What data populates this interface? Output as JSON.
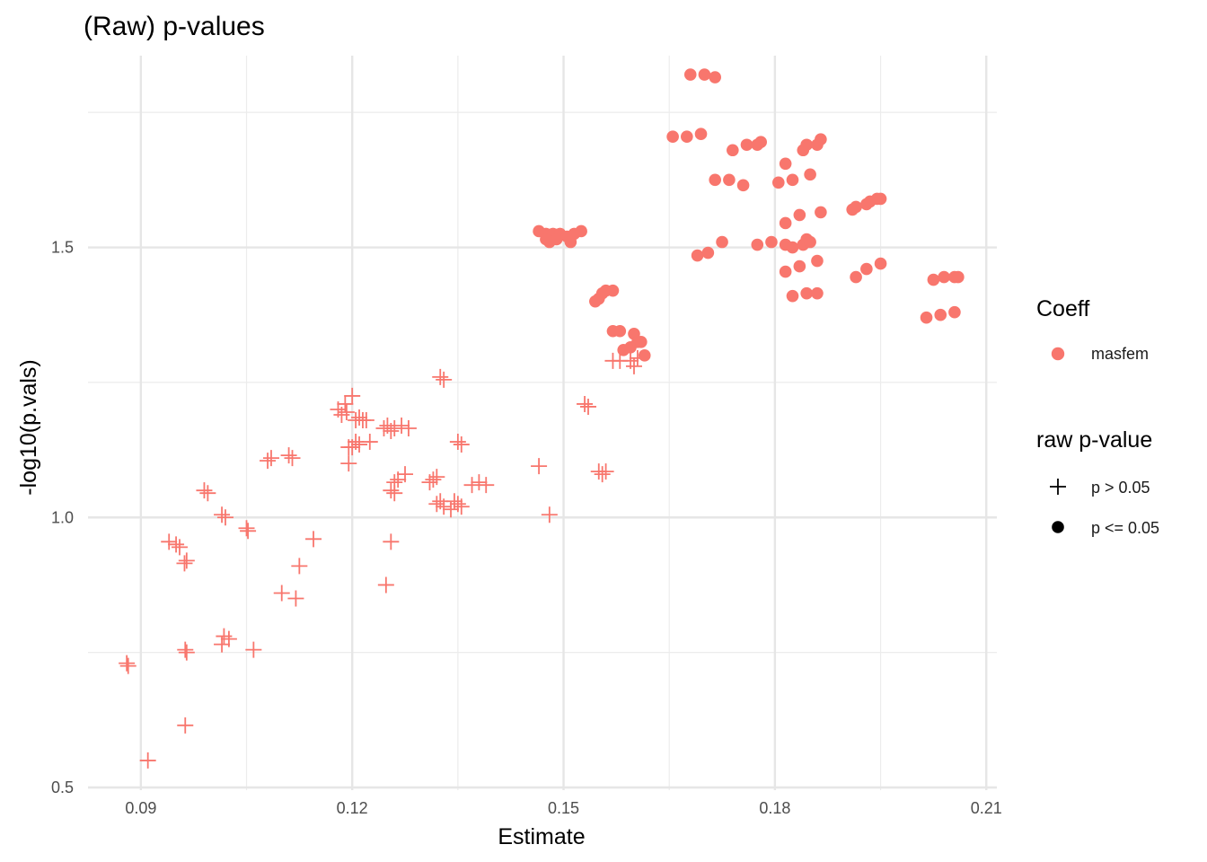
{
  "chart_data": {
    "type": "scatter",
    "title": "(Raw) p-values",
    "xlabel": "Estimate",
    "ylabel": "-log10(p.vals)",
    "xlim": [
      0.0825,
      0.2115
    ],
    "ylim": [
      0.495,
      1.855
    ],
    "x_ticks": [
      0.09,
      0.12,
      0.15,
      0.18,
      0.21
    ],
    "x_tick_labels": [
      "0.09",
      "0.12",
      "0.15",
      "0.18",
      "0.21"
    ],
    "y_ticks": [
      0.5,
      1.0,
      1.5
    ],
    "y_tick_labels": [
      "0.5",
      "1.0",
      "1.5"
    ],
    "grid": true,
    "color": "#F8766D",
    "legends": {
      "color": {
        "title": "Coeff",
        "entries": [
          {
            "label": "masfem",
            "color": "#F8766D"
          }
        ]
      },
      "shape": {
        "title": "raw p-value",
        "entries": [
          {
            "label": "p >  0.05",
            "shape": "plus"
          },
          {
            "label": "p <= 0.05",
            "shape": "circle"
          }
        ]
      },
      "placement": "right"
    },
    "series": [
      {
        "shape": "plus",
        "group": "p > 0.05",
        "points": [
          [
            0.088,
            0.73
          ],
          [
            0.0882,
            0.725
          ],
          [
            0.091,
            0.55
          ],
          [
            0.094,
            0.955
          ],
          [
            0.095,
            0.95
          ],
          [
            0.0955,
            0.945
          ],
          [
            0.0965,
            0.92
          ],
          [
            0.0962,
            0.915
          ],
          [
            0.0963,
            0.755
          ],
          [
            0.0965,
            0.75
          ],
          [
            0.0963,
            0.615
          ],
          [
            0.099,
            1.05
          ],
          [
            0.0995,
            1.045
          ],
          [
            0.1015,
            1.005
          ],
          [
            0.102,
            1.0
          ],
          [
            0.1018,
            0.78
          ],
          [
            0.1015,
            0.765
          ],
          [
            0.1025,
            0.775
          ],
          [
            0.105,
            0.98
          ],
          [
            0.1052,
            0.975
          ],
          [
            0.106,
            0.755
          ],
          [
            0.108,
            1.105
          ],
          [
            0.1085,
            1.11
          ],
          [
            0.111,
            1.115
          ],
          [
            0.1115,
            1.11
          ],
          [
            0.11,
            0.86
          ],
          [
            0.112,
            0.85
          ],
          [
            0.1125,
            0.91
          ],
          [
            0.1145,
            0.96
          ],
          [
            0.118,
            1.2
          ],
          [
            0.1185,
            1.19
          ],
          [
            0.119,
            1.21
          ],
          [
            0.1192,
            1.195
          ],
          [
            0.1195,
            1.13
          ],
          [
            0.12,
            1.225
          ],
          [
            0.1205,
            1.18
          ],
          [
            0.121,
            1.185
          ],
          [
            0.1215,
            1.18
          ],
          [
            0.1195,
            1.1
          ],
          [
            0.12,
            1.13
          ],
          [
            0.1205,
            1.14
          ],
          [
            0.121,
            1.135
          ],
          [
            0.122,
            1.18
          ],
          [
            0.1225,
            1.14
          ],
          [
            0.1245,
            1.165
          ],
          [
            0.125,
            1.17
          ],
          [
            0.1255,
            1.16
          ],
          [
            0.126,
            1.165
          ],
          [
            0.127,
            1.17
          ],
          [
            0.128,
            1.165
          ],
          [
            0.1255,
            1.05
          ],
          [
            0.126,
            1.045
          ],
          [
            0.126,
            1.065
          ],
          [
            0.1265,
            1.07
          ],
          [
            0.1275,
            1.08
          ],
          [
            0.1248,
            0.875
          ],
          [
            0.1255,
            0.955
          ],
          [
            0.131,
            1.065
          ],
          [
            0.1315,
            1.07
          ],
          [
            0.132,
            1.075
          ],
          [
            0.1325,
            1.26
          ],
          [
            0.133,
            1.255
          ],
          [
            0.132,
            1.025
          ],
          [
            0.1325,
            1.03
          ],
          [
            0.133,
            1.02
          ],
          [
            0.134,
            1.015
          ],
          [
            0.1345,
            1.03
          ],
          [
            0.135,
            1.025
          ],
          [
            0.1355,
            1.02
          ],
          [
            0.135,
            1.14
          ],
          [
            0.1355,
            1.135
          ],
          [
            0.137,
            1.06
          ],
          [
            0.138,
            1.065
          ],
          [
            0.139,
            1.06
          ],
          [
            0.1465,
            1.095
          ],
          [
            0.148,
            1.005
          ],
          [
            0.153,
            1.21
          ],
          [
            0.1535,
            1.205
          ],
          [
            0.155,
            1.085
          ],
          [
            0.1555,
            1.08
          ],
          [
            0.156,
            1.085
          ],
          [
            0.157,
            1.29
          ],
          [
            0.158,
            1.29
          ],
          [
            0.1595,
            1.29
          ],
          [
            0.16,
            1.28
          ],
          [
            0.1605,
            1.295
          ]
        ]
      },
      {
        "shape": "circle",
        "group": "p <= 0.05",
        "points": [
          [
            0.1465,
            1.53
          ],
          [
            0.1475,
            1.525
          ],
          [
            0.148,
            1.51
          ],
          [
            0.1485,
            1.525
          ],
          [
            0.1495,
            1.525
          ],
          [
            0.149,
            1.515
          ],
          [
            0.1505,
            1.52
          ],
          [
            0.151,
            1.51
          ],
          [
            0.1515,
            1.525
          ],
          [
            0.1525,
            1.53
          ],
          [
            0.1475,
            1.515
          ],
          [
            0.1545,
            1.4
          ],
          [
            0.155,
            1.405
          ],
          [
            0.1555,
            1.415
          ],
          [
            0.156,
            1.42
          ],
          [
            0.157,
            1.42
          ],
          [
            0.157,
            1.345
          ],
          [
            0.158,
            1.345
          ],
          [
            0.1585,
            1.31
          ],
          [
            0.1595,
            1.315
          ],
          [
            0.16,
            1.34
          ],
          [
            0.1605,
            1.325
          ],
          [
            0.161,
            1.325
          ],
          [
            0.1615,
            1.3
          ],
          [
            0.1655,
            1.705
          ],
          [
            0.1675,
            1.705
          ],
          [
            0.1695,
            1.71
          ],
          [
            0.168,
            1.82
          ],
          [
            0.17,
            1.82
          ],
          [
            0.1715,
            1.815
          ],
          [
            0.169,
            1.485
          ],
          [
            0.1705,
            1.49
          ],
          [
            0.1725,
            1.51
          ],
          [
            0.1715,
            1.625
          ],
          [
            0.1735,
            1.625
          ],
          [
            0.1755,
            1.615
          ],
          [
            0.174,
            1.68
          ],
          [
            0.176,
            1.69
          ],
          [
            0.1775,
            1.69
          ],
          [
            0.178,
            1.695
          ],
          [
            0.1775,
            1.505
          ],
          [
            0.1795,
            1.51
          ],
          [
            0.1815,
            1.505
          ],
          [
            0.1825,
            1.5
          ],
          [
            0.184,
            1.505
          ],
          [
            0.1845,
            1.515
          ],
          [
            0.185,
            1.51
          ],
          [
            0.1805,
            1.62
          ],
          [
            0.1825,
            1.625
          ],
          [
            0.1815,
            1.655
          ],
          [
            0.184,
            1.68
          ],
          [
            0.1845,
            1.69
          ],
          [
            0.185,
            1.635
          ],
          [
            0.186,
            1.69
          ],
          [
            0.1865,
            1.7
          ],
          [
            0.1815,
            1.545
          ],
          [
            0.1835,
            1.56
          ],
          [
            0.1865,
            1.565
          ],
          [
            0.1815,
            1.455
          ],
          [
            0.1835,
            1.465
          ],
          [
            0.186,
            1.475
          ],
          [
            0.1825,
            1.41
          ],
          [
            0.1845,
            1.415
          ],
          [
            0.186,
            1.415
          ],
          [
            0.191,
            1.57
          ],
          [
            0.1915,
            1.575
          ],
          [
            0.193,
            1.58
          ],
          [
            0.1935,
            1.585
          ],
          [
            0.1945,
            1.59
          ],
          [
            0.195,
            1.59
          ],
          [
            0.1915,
            1.445
          ],
          [
            0.193,
            1.46
          ],
          [
            0.195,
            1.47
          ],
          [
            0.2015,
            1.37
          ],
          [
            0.2035,
            1.375
          ],
          [
            0.2055,
            1.38
          ],
          [
            0.2025,
            1.44
          ],
          [
            0.204,
            1.445
          ],
          [
            0.2055,
            1.445
          ],
          [
            0.206,
            1.445
          ]
        ]
      }
    ]
  }
}
